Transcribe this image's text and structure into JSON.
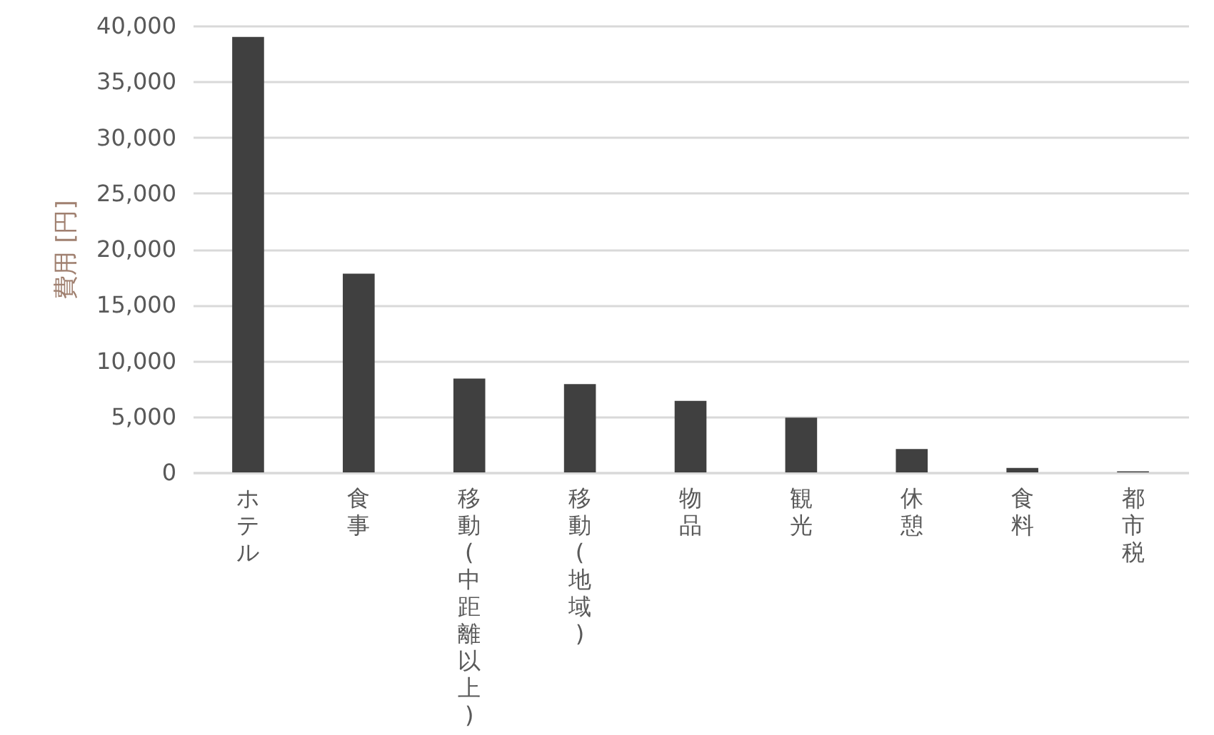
{
  "chart_data": {
    "type": "bar",
    "ylabel": "費用 [円]",
    "categories": [
      "ホテル",
      "食事",
      "移動(中距離以上)",
      "移動(地域)",
      "物品",
      "観光",
      "休憩",
      "食料",
      "都市税"
    ],
    "values": [
      39000,
      17800,
      8400,
      7900,
      6400,
      4900,
      2100,
      400,
      100
    ],
    "color": "#404040",
    "ylim": [
      0,
      40000
    ],
    "yticks": [
      0,
      {
        "value": 5000,
        "label": "5,000"
      },
      {
        "value": 10000,
        "label": "10,000"
      },
      {
        "value": 15000,
        "label": "15,000"
      },
      {
        "value": 20000,
        "label": "20,000"
      },
      {
        "value": 25000,
        "label": "25,000"
      },
      {
        "value": 30000,
        "label": "30,000"
      },
      {
        "value": 35000,
        "label": "35,000"
      },
      {
        "value": 40000,
        "label": "40,000"
      }
    ],
    "grid": "y"
  }
}
